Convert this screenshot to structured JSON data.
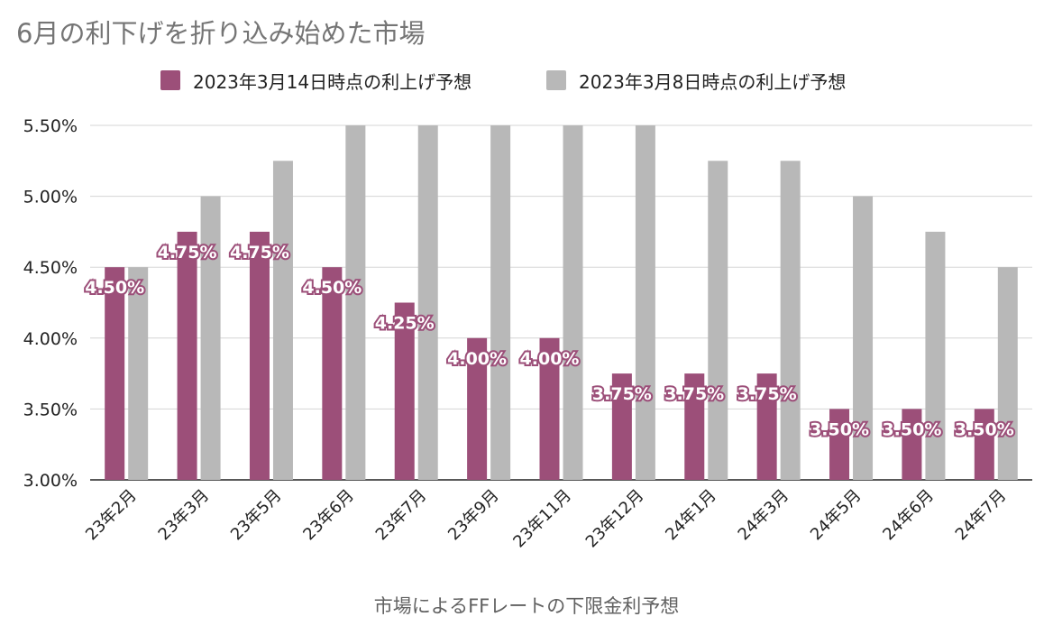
{
  "colors": {
    "series1": "#9c4f79",
    "series2": "#b8b8b8",
    "grid": "#d5d5d5",
    "axis": "#222222"
  },
  "chart_data": {
    "type": "bar",
    "title": "6月の利下げを折り込み始めた市場",
    "xlabel": "市場によるFFレートの下限金利予想",
    "ylabel": "",
    "ylim": [
      3.0,
      5.5
    ],
    "yticks": [
      "3.00%",
      "3.50%",
      "4.00%",
      "4.50%",
      "5.00%",
      "5.50%"
    ],
    "grid": true,
    "legend_position": "top",
    "categories": [
      "23年2月",
      "23年3月",
      "23年5月",
      "23年6月",
      "23年7月",
      "23年9月",
      "23年11月",
      "23年12月",
      "24年1月",
      "24年3月",
      "24年5月",
      "24年6月",
      "24年7月"
    ],
    "series": [
      {
        "name": "2023年3月14日時点の利上げ予想",
        "values": [
          4.5,
          4.75,
          4.75,
          4.5,
          4.25,
          4.0,
          4.0,
          3.75,
          3.75,
          3.75,
          3.5,
          3.5,
          3.5
        ],
        "data_labels": [
          "4.50%",
          "4.75%",
          "4.75%",
          "4.50%",
          "4.25%",
          "4.00%",
          "4.00%",
          "3.75%",
          "3.75%",
          "3.75%",
          "3.50%",
          "3.50%",
          "3.50%"
        ]
      },
      {
        "name": "2023年3月8日時点の利上げ予想",
        "values": [
          4.5,
          5.0,
          5.25,
          5.5,
          5.5,
          5.5,
          5.5,
          5.5,
          5.25,
          5.25,
          5.0,
          4.75,
          4.5
        ]
      }
    ]
  }
}
